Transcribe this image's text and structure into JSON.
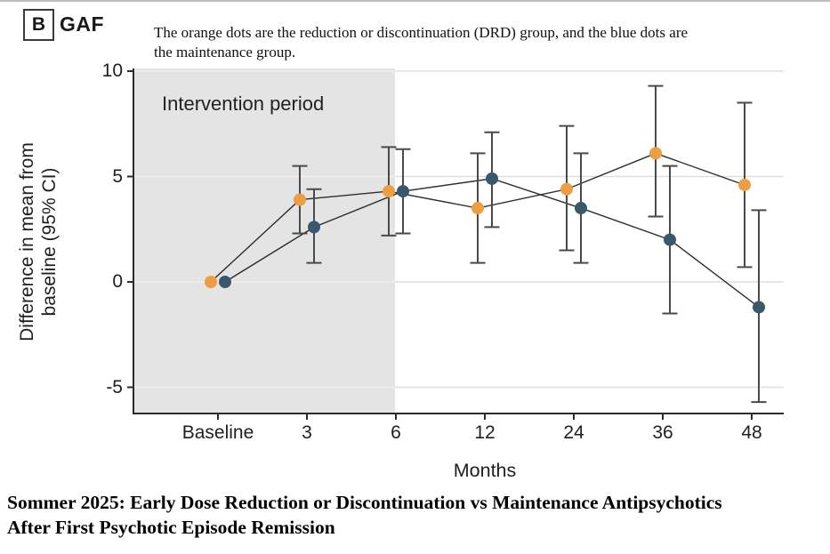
{
  "header": {
    "panel_letter": "B",
    "panel_title": "GAF",
    "caption_line1": "The orange dots are the reduction or discontinuation (DRD) group, and the blue dots are",
    "caption_line2": "the maintenance group."
  },
  "footer": {
    "title_line1": "Sommer 2025: Early Dose Reduction or Discontinuation vs Maintenance Antipsychotics",
    "title_line2": "After First Psychotic Episode Remission"
  },
  "colors": {
    "orange": "#EC9E40",
    "blue": "#39586C",
    "shade": "#E4E4E4",
    "axis": "#2B2B2B",
    "grid_on_shade": "#EFEFEF",
    "grid_on_white": "#DEDEDE",
    "error_bar": "#4A4A4A",
    "series_line": "#2D2D2D",
    "top_border": "#BDBDBD"
  },
  "chart_data": {
    "type": "line",
    "panel": "B",
    "title": "GAF",
    "xlabel": "Months",
    "ylabel": "Difference in mean from baseline (95% CI)",
    "ylabel_line1": "Difference in mean from",
    "ylabel_line2": "baseline (95% CI)",
    "categories": [
      "Baseline",
      "3",
      "6",
      "12",
      "24",
      "36",
      "48"
    ],
    "yticks": [
      10,
      5,
      0,
      -5
    ],
    "ylim": [
      -6.3,
      10.2
    ],
    "grid": true,
    "legend_position": "none",
    "intervention_label": "Intervention period",
    "intervention_span": [
      "Baseline",
      "6"
    ],
    "series": [
      {
        "name": "Reduction or discontinuation (DRD)",
        "color": "#EC9E40",
        "values": [
          0,
          3.9,
          4.3,
          3.5,
          4.4,
          6.1,
          4.6
        ],
        "ci_low": [
          null,
          2.3,
          2.2,
          0.9,
          1.5,
          3.1,
          0.7
        ],
        "ci_high": [
          null,
          5.5,
          6.4,
          6.1,
          7.4,
          9.3,
          8.5
        ]
      },
      {
        "name": "Maintenance",
        "color": "#39586C",
        "values": [
          0,
          2.6,
          4.3,
          4.9,
          3.5,
          2.0,
          -1.2
        ],
        "ci_low": [
          null,
          0.9,
          2.3,
          2.6,
          0.9,
          -1.5,
          -5.7
        ],
        "ci_high": [
          null,
          4.4,
          6.3,
          7.1,
          6.1,
          5.5,
          3.4
        ]
      }
    ]
  }
}
